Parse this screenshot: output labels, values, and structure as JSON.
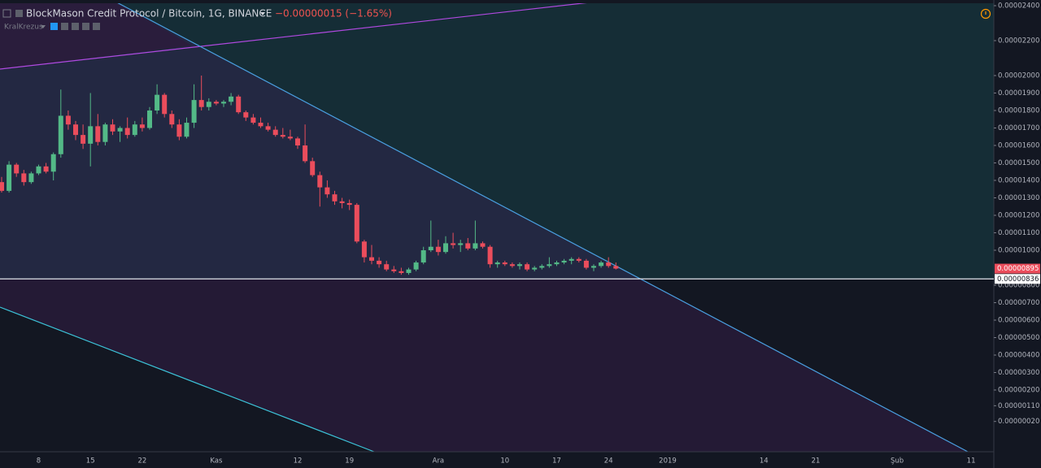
{
  "header": {
    "change": "−0.00000015 (−1.65%)",
    "user": "KralKrezus"
  },
  "chart_data": {
    "type": "candlestick",
    "title": "BlockMason Credit Protocol / Bitcoin, 1G, BINANCE",
    "up_color": "#53b987",
    "down_color": "#eb4d5c",
    "categories": [
      null,
      null,
      null,
      null,
      null,
      "8",
      null,
      null,
      null,
      null,
      null,
      null,
      "15",
      null,
      null,
      null,
      null,
      null,
      null,
      "22",
      null,
      null,
      null,
      null,
      null,
      null,
      null,
      null,
      null,
      "Kas",
      null,
      null,
      null,
      null,
      null,
      null,
      null,
      null,
      null,
      null,
      "12",
      null,
      null,
      null,
      null,
      null,
      null,
      "19",
      null,
      null,
      null,
      null,
      null,
      null,
      null,
      null,
      null,
      null,
      null,
      "Ara",
      null,
      null,
      null,
      null,
      null,
      null,
      null,
      null,
      "10",
      null,
      null,
      null,
      null,
      null,
      null,
      "17",
      null,
      null,
      null,
      null,
      null,
      null,
      "24",
      null,
      null,
      null,
      null,
      null,
      null,
      null,
      "2019",
      null,
      null,
      null,
      null,
      null,
      null,
      null,
      null,
      null,
      null,
      null,
      null,
      "14",
      null,
      null,
      null,
      null,
      null,
      null,
      "21",
      null,
      null,
      null,
      null,
      null,
      null,
      null,
      null,
      null,
      null,
      "Şub",
      null,
      null,
      null,
      null,
      null,
      null,
      null,
      null,
      null,
      "11",
      null,
      null
    ],
    "open": [
      1.39e-05,
      1.34e-05,
      1.49e-05,
      1.44e-05,
      1.39e-05,
      1.44e-05,
      1.48e-05,
      1.45e-05,
      1.55e-05,
      1.77e-05,
      1.72e-05,
      1.66e-05,
      1.61e-05,
      1.71e-05,
      1.62e-05,
      1.72e-05,
      1.68e-05,
      1.7e-05,
      1.66e-05,
      1.72e-05,
      1.7e-05,
      1.8e-05,
      1.89e-05,
      1.78e-05,
      1.72e-05,
      1.65e-05,
      1.73e-05,
      1.86e-05,
      1.82e-05,
      1.85e-05,
      1.84e-05,
      1.85e-05,
      1.88e-05,
      1.79e-05,
      1.76e-05,
      1.73e-05,
      1.71e-05,
      1.69e-05,
      1.66e-05,
      1.65e-05,
      1.64e-05,
      1.6e-05,
      1.51e-05,
      1.43e-05,
      1.36e-05,
      1.32e-05,
      1.28e-05,
      1.27e-05,
      1.26e-05,
      1.05e-05,
      9.6e-06,
      9.4e-06,
      9.2e-06,
      8.9e-06,
      8.8e-06,
      8.7e-06,
      8.9e-06,
      9.3e-06,
      1e-05,
      1.02e-05,
      9.9e-06,
      1.04e-05,
      1.03e-05,
      1.04e-05,
      1.01e-05,
      1.04e-05,
      1.02e-05,
      9.2e-06,
      9.3e-06,
      9.2e-06,
      9.1e-06,
      9.2e-06,
      8.9e-06,
      9e-06,
      9.1e-06,
      9.2e-06,
      9.3e-06,
      9.4e-06,
      9.5e-06,
      9.4e-06,
      9e-06,
      9.1e-06,
      9.3e-06,
      9.1e-06,
      null,
      null,
      null,
      null,
      null,
      null,
      null,
      null,
      null,
      null,
      null,
      null,
      null,
      null,
      null,
      null,
      null,
      null,
      null,
      null,
      null,
      null,
      null,
      null,
      null,
      null,
      null,
      null,
      null,
      null,
      null,
      null,
      null,
      null,
      null,
      null,
      null,
      null,
      null,
      null,
      null,
      null,
      null,
      null,
      null,
      null,
      null,
      null,
      null,
      null
    ],
    "high": [
      1.42e-05,
      1.51e-05,
      1.5e-05,
      1.46e-05,
      1.45e-05,
      1.49e-05,
      1.5e-05,
      1.56e-05,
      1.92e-05,
      1.8e-05,
      1.74e-05,
      1.72e-05,
      1.9e-05,
      1.78e-05,
      1.73e-05,
      1.75e-05,
      1.71e-05,
      1.76e-05,
      1.74e-05,
      1.76e-05,
      1.82e-05,
      1.95e-05,
      1.9e-05,
      1.8e-05,
      1.75e-05,
      1.76e-05,
      1.95e-05,
      2e-05,
      1.87e-05,
      1.86e-05,
      1.86e-05,
      1.9e-05,
      1.89e-05,
      1.8e-05,
      1.78e-05,
      1.76e-05,
      1.73e-05,
      1.71e-05,
      1.7e-05,
      1.69e-05,
      1.65e-05,
      1.72e-05,
      1.53e-05,
      1.45e-05,
      1.4e-05,
      1.34e-05,
      1.3e-05,
      1.29e-05,
      1.27e-05,
      1.06e-05,
      1.03e-05,
      9.6e-06,
      9.4e-06,
      9.1e-06,
      9e-06,
      9e-06,
      9.4e-06,
      1.02e-05,
      1.17e-05,
      1.06e-05,
      1.08e-05,
      1.1e-05,
      1.06e-05,
      1.07e-05,
      1.17e-05,
      1.05e-05,
      1.03e-05,
      9.4e-06,
      9.4e-06,
      9.3e-06,
      9.3e-06,
      9.3e-06,
      9.1e-06,
      9.2e-06,
      9.6e-06,
      9.4e-06,
      9.5e-06,
      9.6e-06,
      9.6e-06,
      9.5e-06,
      9.2e-06,
      9.4e-06,
      9.6e-06,
      9.3e-06,
      null,
      null,
      null,
      null,
      null,
      null,
      null,
      null,
      null,
      null,
      null,
      null,
      null,
      null,
      null,
      null,
      null,
      null,
      null,
      null,
      null,
      null,
      null,
      null,
      null,
      null,
      null,
      null,
      null,
      null,
      null,
      null,
      null,
      null,
      null,
      null,
      null,
      null,
      null,
      null,
      null,
      null,
      null,
      null,
      null,
      null,
      null,
      null,
      null,
      null
    ],
    "low": [
      1.33e-05,
      1.33e-05,
      1.42e-05,
      1.37e-05,
      1.38e-05,
      1.43e-05,
      1.44e-05,
      1.4e-05,
      1.53e-05,
      1.69e-05,
      1.63e-05,
      1.58e-05,
      1.48e-05,
      1.6e-05,
      1.6e-05,
      1.66e-05,
      1.62e-05,
      1.64e-05,
      1.65e-05,
      1.68e-05,
      1.69e-05,
      1.78e-05,
      1.76e-05,
      1.7e-05,
      1.63e-05,
      1.64e-05,
      1.7e-05,
      1.8e-05,
      1.8e-05,
      1.83e-05,
      1.82e-05,
      1.83e-05,
      1.78e-05,
      1.74e-05,
      1.72e-05,
      1.7e-05,
      1.68e-05,
      1.65e-05,
      1.64e-05,
      1.63e-05,
      1.58e-05,
      1.5e-05,
      1.42e-05,
      1.25e-05,
      1.3e-05,
      1.26e-05,
      1.24e-05,
      1.23e-05,
      1.04e-05,
      9.3e-06,
      9.2e-06,
      9e-06,
      8.8e-06,
      8.7e-06,
      8.6e-06,
      8.6e-06,
      8.8e-06,
      9.2e-06,
      9.9e-06,
      9.7e-06,
      9.8e-06,
      1.01e-05,
      9.9e-06,
      1e-05,
      1e-05,
      1.01e-05,
      9e-06,
      9e-06,
      9.1e-06,
      9e-06,
      8.9e-06,
      8.8e-06,
      8.8e-06,
      8.9e-06,
      9e-06,
      9.1e-06,
      9.2e-06,
      9.2e-06,
      9.3e-06,
      8.9e-06,
      8.8e-06,
      9e-06,
      9e-06,
      8.9e-06,
      null,
      null,
      null,
      null,
      null,
      null,
      null,
      null,
      null,
      null,
      null,
      null,
      null,
      null,
      null,
      null,
      null,
      null,
      null,
      null,
      null,
      null,
      null,
      null,
      null,
      null,
      null,
      null,
      null,
      null,
      null,
      null,
      null,
      null,
      null,
      null,
      null,
      null,
      null,
      null,
      null,
      null,
      null,
      null,
      null,
      null,
      null,
      null,
      null,
      null
    ],
    "close": [
      1.34e-05,
      1.49e-05,
      1.44e-05,
      1.39e-05,
      1.44e-05,
      1.48e-05,
      1.45e-05,
      1.55e-05,
      1.77e-05,
      1.72e-05,
      1.66e-05,
      1.61e-05,
      1.71e-05,
      1.62e-05,
      1.72e-05,
      1.68e-05,
      1.7e-05,
      1.66e-05,
      1.72e-05,
      1.7e-05,
      1.8e-05,
      1.89e-05,
      1.78e-05,
      1.72e-05,
      1.65e-05,
      1.73e-05,
      1.86e-05,
      1.82e-05,
      1.85e-05,
      1.84e-05,
      1.85e-05,
      1.88e-05,
      1.79e-05,
      1.76e-05,
      1.73e-05,
      1.71e-05,
      1.69e-05,
      1.66e-05,
      1.65e-05,
      1.64e-05,
      1.6e-05,
      1.51e-05,
      1.43e-05,
      1.36e-05,
      1.32e-05,
      1.28e-05,
      1.27e-05,
      1.26e-05,
      1.05e-05,
      9.6e-06,
      9.4e-06,
      9.2e-06,
      8.9e-06,
      8.8e-06,
      8.7e-06,
      8.9e-06,
      9.3e-06,
      1e-05,
      1.02e-05,
      9.9e-06,
      1.04e-05,
      1.03e-05,
      1.04e-05,
      1.01e-05,
      1.04e-05,
      1.02e-05,
      9.2e-06,
      9.3e-06,
      9.2e-06,
      9.1e-06,
      9.2e-06,
      8.9e-06,
      9e-06,
      9.1e-06,
      9.2e-06,
      9.3e-06,
      9.4e-06,
      9.5e-06,
      9.4e-06,
      9e-06,
      9.1e-06,
      9.3e-06,
      9.1e-06,
      8.95e-06,
      null,
      null,
      null,
      null,
      null,
      null,
      null,
      null,
      null,
      null,
      null,
      null,
      null,
      null,
      null,
      null,
      null,
      null,
      null,
      null,
      null,
      null,
      null,
      null,
      null,
      null,
      null,
      null,
      null,
      null,
      null,
      null,
      null,
      null,
      null,
      null,
      null,
      null,
      null,
      null,
      null,
      null,
      null,
      null,
      null,
      null,
      null,
      null,
      null,
      null
    ],
    "ylim": [
      -1.535e-06,
      2.4326e-05
    ],
    "yticks": [
      {
        "value": 2.4e-05,
        "label": "0.00002400"
      },
      {
        "value": 2.2e-05,
        "label": "0.00002200"
      },
      {
        "value": 2e-05,
        "label": "0.00002000"
      },
      {
        "value": 1.9e-05,
        "label": "0.00001900"
      },
      {
        "value": 1.8e-05,
        "label": "0.00001800"
      },
      {
        "value": 1.7e-05,
        "label": "0.00001700"
      },
      {
        "value": 1.6e-05,
        "label": "0.00001600"
      },
      {
        "value": 1.5e-05,
        "label": "0.00001500"
      },
      {
        "value": 1.4e-05,
        "label": "0.00001400"
      },
      {
        "value": 1.3e-05,
        "label": "0.00001300"
      },
      {
        "value": 1.2e-05,
        "label": "0.00001200"
      },
      {
        "value": 1.1e-05,
        "label": "0.00001100"
      },
      {
        "value": 1e-05,
        "label": "0.00001000"
      },
      {
        "value": 8e-06,
        "label": "0.00000800"
      },
      {
        "value": 7e-06,
        "label": "0.00000700"
      },
      {
        "value": 6e-06,
        "label": "0.00000600"
      },
      {
        "value": 5e-06,
        "label": "0.00000500"
      },
      {
        "value": 4e-06,
        "label": "0.00000400"
      },
      {
        "value": 3e-06,
        "label": "0.00000300"
      },
      {
        "value": 2e-06,
        "label": "0.00000200"
      },
      {
        "value": 1.1e-06,
        "label": "0.00000110"
      },
      {
        "value": 2e-07,
        "label": "0.00000020"
      }
    ],
    "last_price": {
      "value": 8.95e-06,
      "label": "0.00000895"
    },
    "horizontal_line": {
      "value": 8.36e-06,
      "label": "0.00000836"
    }
  }
}
